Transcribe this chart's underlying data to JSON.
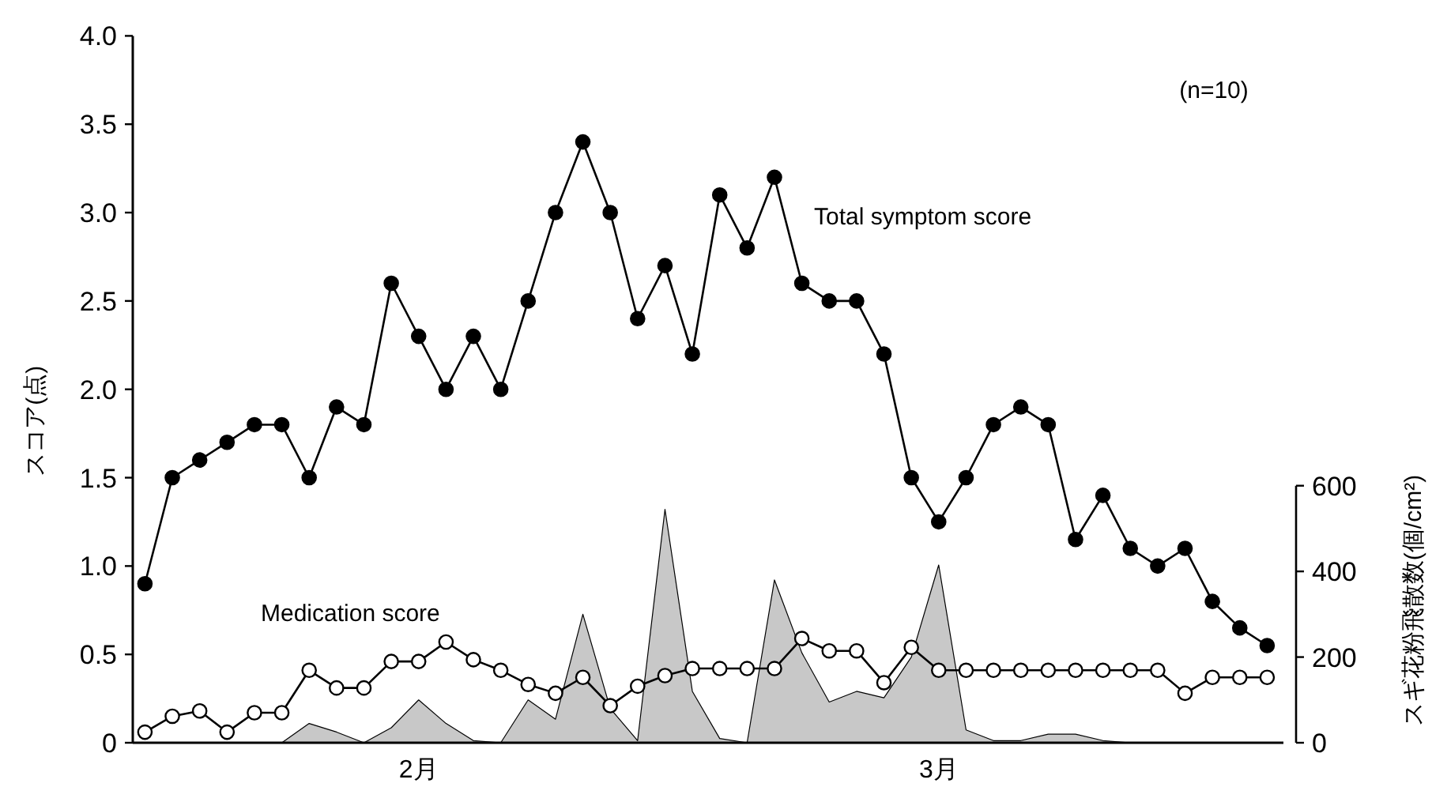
{
  "chart_data": {
    "type": "line",
    "ylabel": "スコア(点)",
    "y2label": "スギ花粉飛散数(個/cm²)",
    "annotations": [
      "(n=10)"
    ],
    "categories": [
      null,
      null,
      null,
      null,
      null,
      null,
      null,
      null,
      null,
      null,
      "2月",
      null,
      null,
      null,
      null,
      null,
      null,
      null,
      null,
      null,
      null,
      null,
      null,
      null,
      null,
      null,
      null,
      null,
      null,
      "3月",
      null,
      null,
      null,
      null,
      null,
      null,
      null,
      null,
      null,
      null,
      null,
      null
    ],
    "ylim": [
      0,
      4
    ],
    "yticks": [
      0,
      0.5,
      {
        "value": 1,
        "label": "1.0"
      },
      1.5,
      {
        "value": 2,
        "label": "2.0"
      },
      2.5,
      {
        "value": 3,
        "label": "3.0"
      },
      3.5,
      {
        "value": 4,
        "label": "4.0"
      }
    ],
    "y2lim": [
      0,
      1650
    ],
    "y2ticks": [
      0,
      200,
      400,
      600
    ],
    "legend": false,
    "grid": false,
    "series": [
      {
        "name": "Total symptom score",
        "color": "#000000",
        "marker": "circle",
        "values": [
          0.9,
          1.5,
          1.6,
          1.7,
          1.8,
          1.8,
          1.5,
          1.9,
          1.8,
          2.6,
          2.3,
          2.0,
          2.3,
          2.0,
          2.5,
          3.0,
          3.4,
          3.0,
          2.4,
          2.7,
          2.2,
          3.1,
          2.8,
          3.2,
          2.6,
          2.5,
          2.5,
          2.2,
          1.5,
          1.25,
          1.5,
          1.8,
          1.9,
          1.8,
          1.15,
          1.4,
          1.1,
          1.0,
          1.1,
          0.8,
          0.65,
          0.55
        ]
      },
      {
        "name": "Medication score",
        "color": "#ffffff",
        "marker": "circle",
        "values": [
          0.06,
          0.15,
          0.18,
          0.06,
          0.17,
          0.17,
          0.41,
          0.31,
          0.31,
          0.46,
          0.46,
          0.57,
          0.47,
          0.41,
          0.33,
          0.28,
          0.37,
          0.21,
          0.32,
          0.38,
          0.42,
          0.42,
          0.42,
          0.42,
          0.59,
          0.52,
          0.52,
          0.34,
          0.54,
          0.41,
          0.41,
          0.41,
          0.41,
          0.41,
          0.41,
          0.41,
          0.41,
          0.41,
          0.28,
          0.37,
          0.37,
          0.37
        ]
      },
      {
        "type": "area",
        "axis": "y2",
        "color": "#c8c8c8",
        "values": [
          0,
          0,
          0,
          0,
          0,
          0,
          45,
          25,
          0,
          35,
          100,
          45,
          5,
          0,
          100,
          55,
          300,
          80,
          5,
          545,
          120,
          10,
          0,
          380,
          210,
          95,
          120,
          105,
          200,
          415,
          30,
          5,
          5,
          20,
          20,
          5,
          0,
          0,
          0,
          0,
          0,
          0
        ]
      }
    ]
  }
}
